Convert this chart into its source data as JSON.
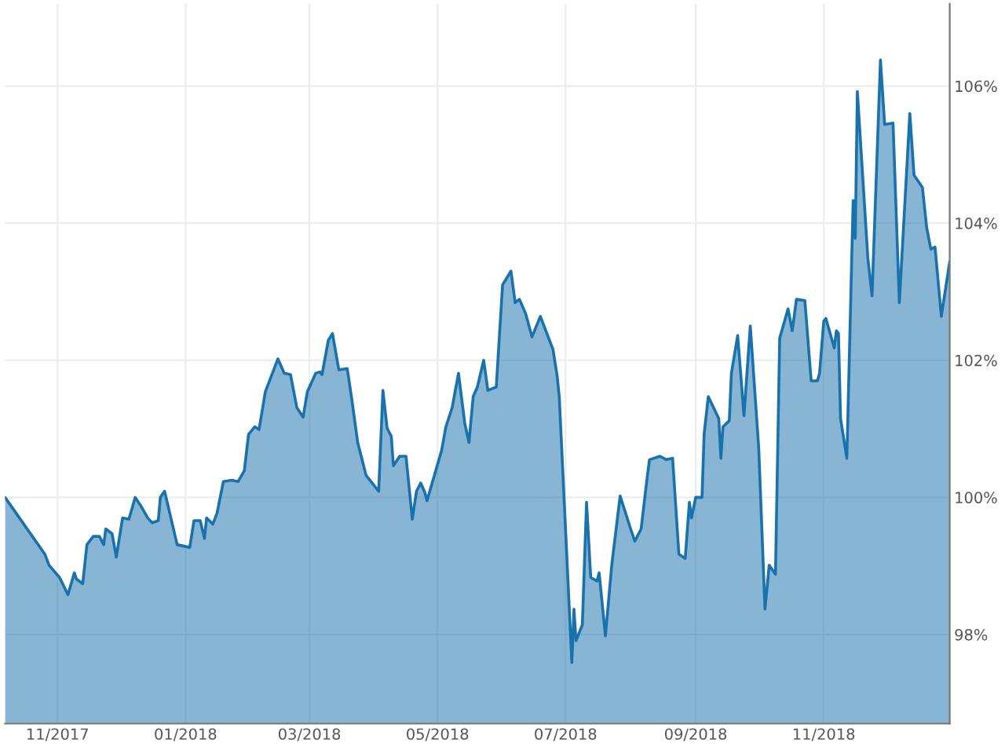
{
  "chart_data": {
    "type": "area",
    "grid": true,
    "legend": false,
    "xlim": [
      "2017-10-07",
      "2018-12-31"
    ],
    "xticks": [
      {
        "value": "2017-11-01",
        "label": "11/2017"
      },
      {
        "value": "2018-01-01",
        "label": "01/2018"
      },
      {
        "value": "2018-03-01",
        "label": "03/2018"
      },
      {
        "value": "2018-05-01",
        "label": "05/2018"
      },
      {
        "value": "2018-07-01",
        "label": "07/2018"
      },
      {
        "value": "2018-09-01",
        "label": "09/2018"
      },
      {
        "value": "2018-11-01",
        "label": "11/2018"
      }
    ],
    "ylim": [
      96.7,
      107.2
    ],
    "yticks": [
      {
        "value": 98,
        "label": "98%"
      },
      {
        "value": 100,
        "label": "100%"
      },
      {
        "value": 102,
        "label": "102%"
      },
      {
        "value": 104,
        "label": "104%"
      },
      {
        "value": 106,
        "label": "106%"
      }
    ],
    "x": [
      "2017-10-07",
      "2017-10-26",
      "2017-10-28",
      "2017-11-02",
      "2017-11-06",
      "2017-11-09",
      "2017-11-10",
      "2017-11-13",
      "2017-11-15",
      "2017-11-18",
      "2017-11-21",
      "2017-11-23",
      "2017-11-24",
      "2017-11-27",
      "2017-11-29",
      "2017-12-02",
      "2017-12-05",
      "2017-12-08",
      "2017-12-11",
      "2017-12-14",
      "2017-12-16",
      "2017-12-19",
      "2017-12-20",
      "2017-12-22",
      "2017-12-28",
      "2018-01-03",
      "2018-01-05",
      "2018-01-08",
      "2018-01-10",
      "2018-01-11",
      "2018-01-14",
      "2018-01-16",
      "2018-01-19",
      "2018-01-23",
      "2018-01-26",
      "2018-01-29",
      "2018-01-31",
      "2018-02-03",
      "2018-02-05",
      "2018-02-08",
      "2018-02-14",
      "2018-02-17",
      "2018-02-20",
      "2018-02-23",
      "2018-02-26",
      "2018-02-28",
      "2018-03-04",
      "2018-03-06",
      "2018-03-07",
      "2018-03-10",
      "2018-03-12",
      "2018-03-15",
      "2018-03-19",
      "2018-03-21",
      "2018-03-24",
      "2018-03-28",
      "2018-04-03",
      "2018-04-05",
      "2018-04-07",
      "2018-04-09",
      "2018-04-10",
      "2018-04-13",
      "2018-04-16",
      "2018-04-19",
      "2018-04-21",
      "2018-04-23",
      "2018-04-25",
      "2018-04-26",
      "2018-05-03",
      "2018-05-05",
      "2018-05-08",
      "2018-05-11",
      "2018-05-14",
      "2018-05-16",
      "2018-05-18",
      "2018-05-20",
      "2018-05-23",
      "2018-05-25",
      "2018-05-29",
      "2018-06-01",
      "2018-06-05",
      "2018-06-07",
      "2018-06-09",
      "2018-06-12",
      "2018-06-15",
      "2018-06-19",
      "2018-06-21",
      "2018-06-25",
      "2018-06-27",
      "2018-06-28",
      "2018-07-04",
      "2018-07-05",
      "2018-07-06",
      "2018-07-09",
      "2018-07-11",
      "2018-07-13",
      "2018-07-16",
      "2018-07-17",
      "2018-07-20",
      "2018-07-23",
      "2018-07-27",
      "2018-08-01",
      "2018-08-03",
      "2018-08-06",
      "2018-08-09",
      "2018-08-10",
      "2018-08-15",
      "2018-08-18",
      "2018-08-21",
      "2018-08-24",
      "2018-08-27",
      "2018-08-29",
      "2018-08-30",
      "2018-09-01",
      "2018-09-04",
      "2018-09-05",
      "2018-09-07",
      "2018-09-12",
      "2018-09-13",
      "2018-09-14",
      "2018-09-17",
      "2018-09-18",
      "2018-09-21",
      "2018-09-24",
      "2018-09-27",
      "2018-10-01",
      "2018-10-04",
      "2018-10-06",
      "2018-10-09",
      "2018-10-11",
      "2018-10-15",
      "2018-10-17",
      "2018-10-19",
      "2018-10-23",
      "2018-10-26",
      "2018-10-29",
      "2018-10-30",
      "2018-11-01",
      "2018-11-02",
      "2018-11-06",
      "2018-11-07",
      "2018-11-08",
      "2018-11-09",
      "2018-11-12",
      "2018-11-15",
      "2018-11-16",
      "2018-11-17",
      "2018-11-22",
      "2018-11-24",
      "2018-11-28",
      "2018-11-30",
      "2018-12-04",
      "2018-12-07",
      "2018-12-12",
      "2018-12-14",
      "2018-12-18",
      "2018-12-20",
      "2018-12-22",
      "2018-12-24",
      "2018-12-27",
      "2018-12-31"
    ],
    "series": [
      {
        "color": "#1a72ad",
        "values": [
          100.0,
          99.17,
          99.01,
          98.83,
          98.58,
          98.9,
          98.81,
          98.74,
          99.31,
          99.43,
          99.43,
          99.31,
          99.54,
          99.47,
          99.13,
          99.7,
          99.68,
          100.0,
          99.86,
          99.7,
          99.63,
          99.66,
          100.0,
          100.09,
          99.31,
          99.27,
          99.66,
          99.66,
          99.4,
          99.7,
          99.61,
          99.77,
          100.23,
          100.25,
          100.23,
          100.39,
          100.92,
          101.03,
          100.99,
          101.54,
          102.02,
          101.81,
          101.79,
          101.31,
          101.17,
          101.54,
          101.81,
          101.83,
          101.79,
          102.29,
          102.39,
          101.86,
          101.88,
          101.47,
          100.8,
          100.32,
          100.09,
          101.56,
          101.01,
          100.89,
          100.46,
          100.6,
          100.6,
          99.68,
          100.09,
          100.21,
          100.07,
          99.95,
          100.69,
          101.03,
          101.31,
          101.81,
          101.08,
          100.8,
          101.47,
          101.61,
          102.0,
          101.56,
          101.61,
          103.1,
          103.3,
          102.84,
          102.89,
          102.68,
          102.34,
          102.64,
          102.48,
          102.16,
          101.77,
          101.47,
          97.59,
          98.37,
          97.91,
          98.14,
          99.93,
          98.83,
          98.78,
          98.9,
          97.98,
          99.01,
          100.02,
          99.54,
          99.36,
          99.54,
          100.32,
          100.55,
          100.6,
          100.55,
          100.57,
          99.17,
          99.11,
          99.93,
          99.7,
          100.0,
          100.0,
          100.92,
          101.47,
          101.15,
          100.57,
          101.03,
          101.12,
          101.81,
          102.36,
          101.19,
          102.5,
          100.73,
          98.37,
          99.01,
          98.88,
          102.32,
          102.75,
          102.43,
          102.89,
          102.87,
          101.7,
          101.7,
          101.81,
          102.57,
          102.61,
          102.18,
          102.43,
          102.39,
          101.15,
          100.57,
          104.33,
          103.78,
          105.92,
          103.49,
          102.94,
          106.38,
          105.44,
          105.46,
          102.84,
          105.6,
          104.7,
          104.52,
          103.94,
          103.62,
          103.65,
          102.64,
          103.44
        ]
      }
    ]
  }
}
